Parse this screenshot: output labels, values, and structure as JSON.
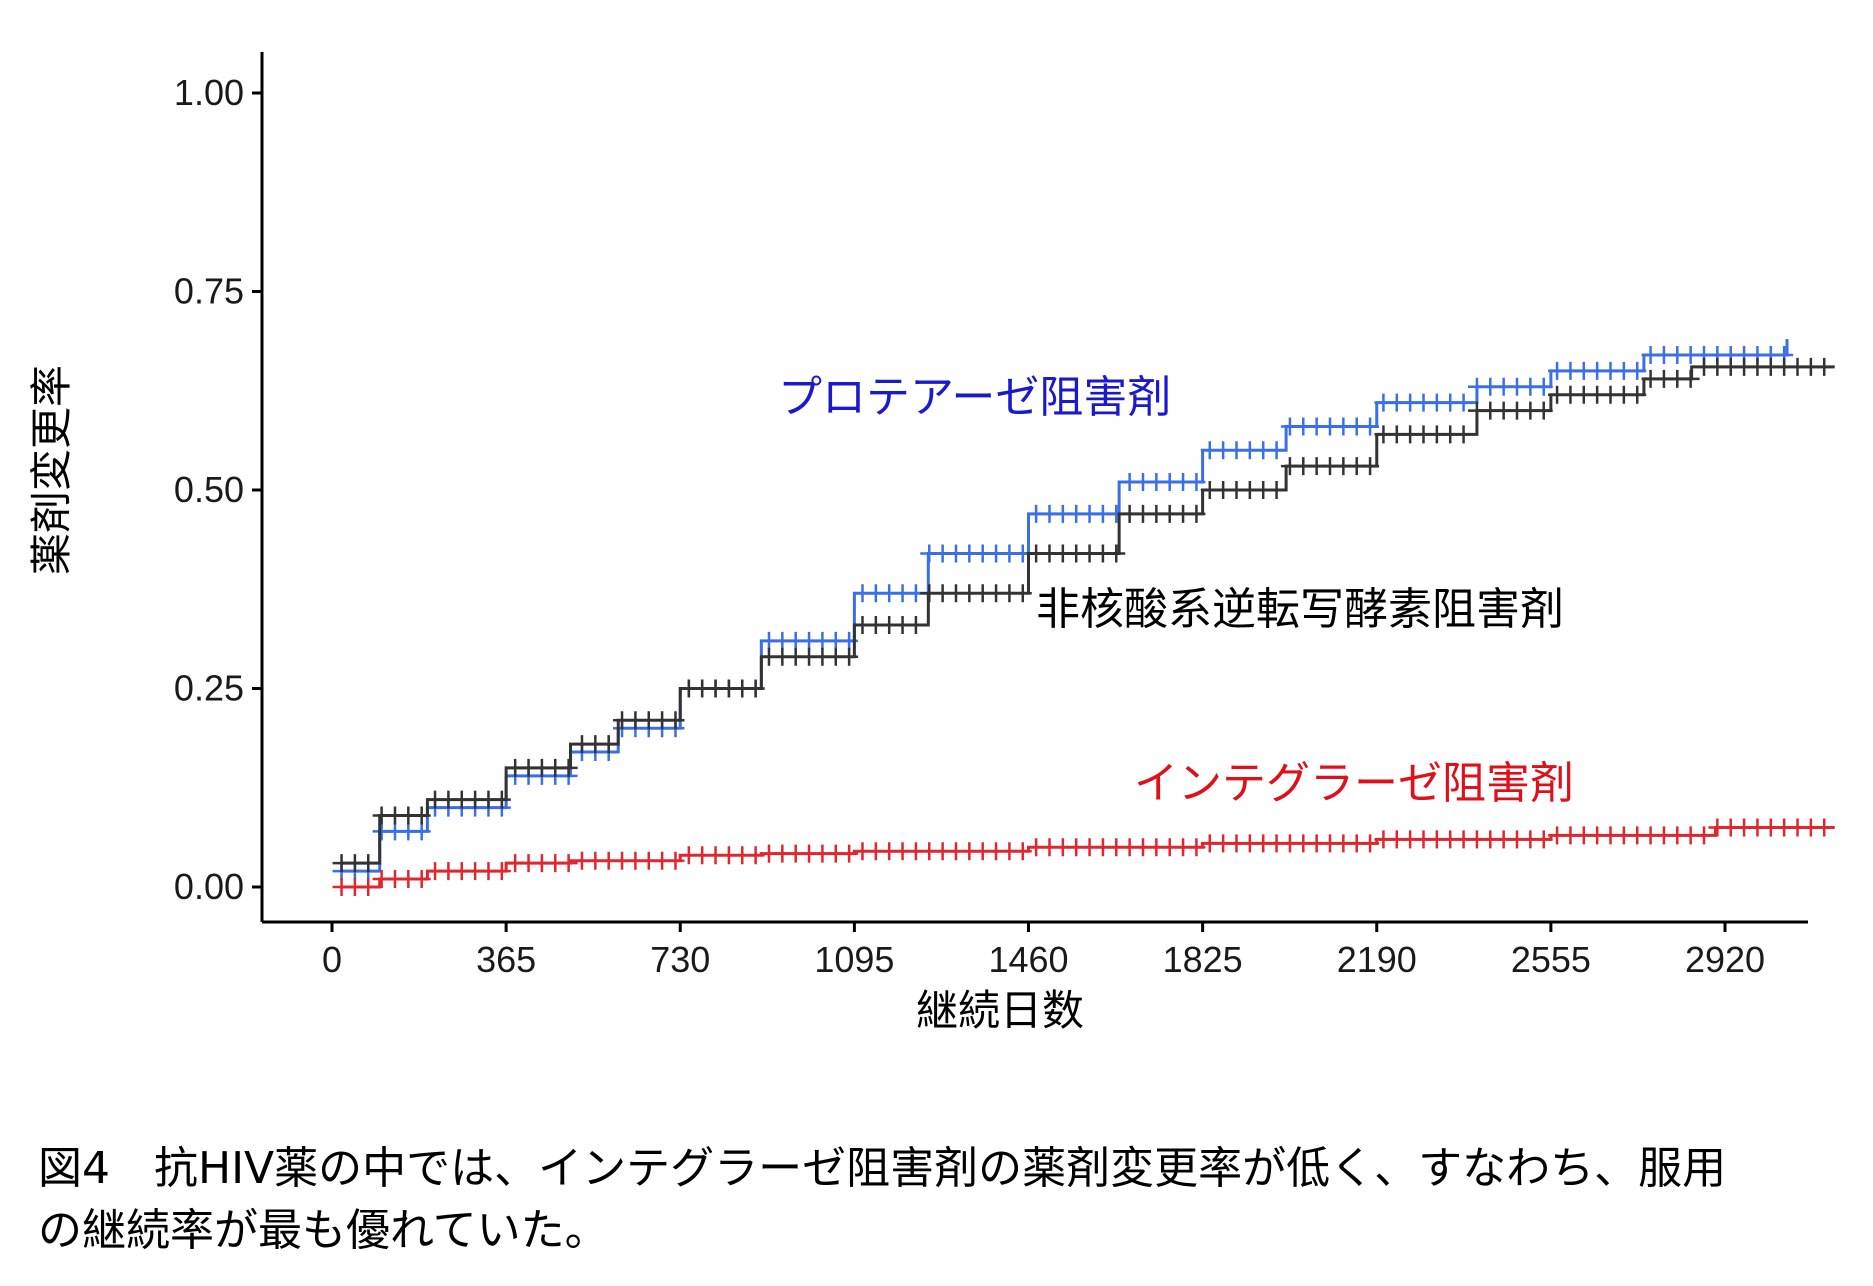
{
  "chart_data": {
    "type": "line",
    "xlabel": "継続日数",
    "ylabel": "薬剤変更率",
    "xlim": [
      -60,
      3180
    ],
    "ylim": [
      -0.05,
      1.05
    ],
    "x_ticks": [
      0,
      365,
      730,
      1095,
      1460,
      1825,
      2190,
      2555,
      2920
    ],
    "y_ticks": [
      0.0,
      0.25,
      0.5,
      0.75,
      1.0
    ],
    "y_tick_labels": [
      "0.00",
      "0.25",
      "0.50",
      "0.75",
      "1.00"
    ],
    "grid": false,
    "legend": "direct labels",
    "series": [
      {
        "name": "プロテアーゼ阻害剤",
        "color": "#3a6fe8",
        "label_color": "#1a1acc",
        "x": [
          20,
          100,
          200,
          365,
          500,
          600,
          730,
          900,
          1095,
          1250,
          1460,
          1650,
          1825,
          2000,
          2190,
          2400,
          2555,
          2750,
          2900,
          3050
        ],
        "y": [
          0.02,
          0.07,
          0.1,
          0.14,
          0.17,
          0.2,
          0.25,
          0.31,
          0.37,
          0.42,
          0.47,
          0.51,
          0.55,
          0.58,
          0.61,
          0.63,
          0.65,
          0.67,
          0.67,
          0.69
        ]
      },
      {
        "name": "非核酸系逆転写酵素阻害剤",
        "color": "#333333",
        "label_color": "#000000",
        "x": [
          20,
          100,
          200,
          365,
          500,
          600,
          730,
          900,
          1095,
          1250,
          1460,
          1650,
          1825,
          2000,
          2190,
          2400,
          2555,
          2750,
          2850,
          3150
        ],
        "y": [
          0.03,
          0.09,
          0.11,
          0.15,
          0.18,
          0.21,
          0.25,
          0.29,
          0.33,
          0.37,
          0.42,
          0.47,
          0.5,
          0.53,
          0.57,
          0.6,
          0.62,
          0.64,
          0.655,
          0.655
        ]
      },
      {
        "name": "インテグラーゼ阻害剤",
        "color": "#e0262e",
        "label_color": "#e0101a",
        "x": [
          20,
          100,
          200,
          365,
          500,
          730,
          900,
          1095,
          1460,
          1825,
          2190,
          2555,
          2800,
          2900,
          3150
        ],
        "y": [
          0.0,
          0.01,
          0.02,
          0.03,
          0.033,
          0.04,
          0.042,
          0.045,
          0.05,
          0.055,
          0.06,
          0.065,
          0.065,
          0.075,
          0.075
        ]
      }
    ]
  },
  "caption": {
    "line1": "図4　抗HIV薬の中では、インテグラーゼ阻害剤の薬剤変更率が低く、すなわち、服用",
    "line2": "の継続率が最も優れていた。"
  }
}
